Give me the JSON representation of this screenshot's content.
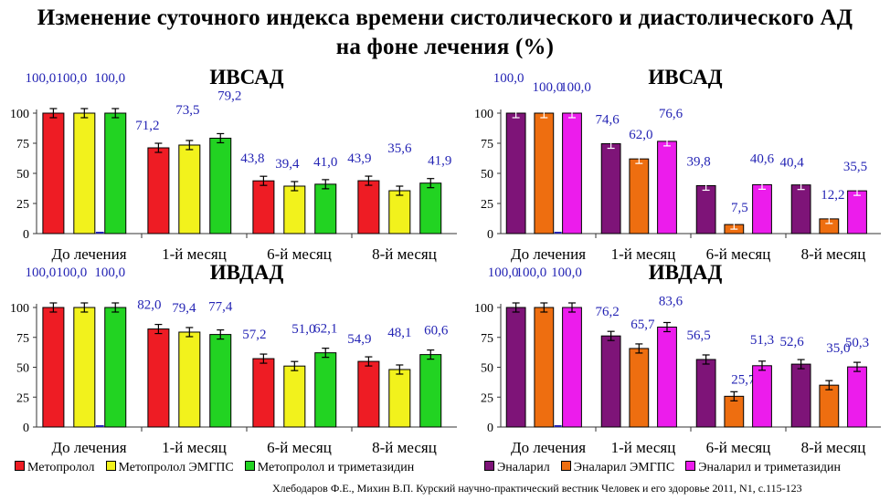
{
  "title_line1": "Изменение суточного индекса времени систолического и диастолического АД",
  "title_line2": "на фоне лечения (%)",
  "source": "Хлебодаров Ф.Е., Михин В.П. Курский научно-практический вестник Человек и его здоровье 2011, N1, с.115-123",
  "legend_left": [
    {
      "label": "Метопролол",
      "color": "#ee1c24"
    },
    {
      "label": "Метопролол ЭМГПС",
      "color": "#f2f21c"
    },
    {
      "label": "Метопролол и триметазидин",
      "color": "#22d322"
    }
  ],
  "legend_right": [
    {
      "label": "Эналарил",
      "color": "#7e1478"
    },
    {
      "label": "Эналарил ЭМГПС",
      "color": "#ee6e10"
    },
    {
      "label": "Эналарил и триметазидин",
      "color": "#ec1cec"
    }
  ],
  "chart_data": [
    {
      "type": "bar",
      "title": "ИВСАД",
      "categories": [
        "До лечения",
        "1-й месяц",
        "6-й месяц",
        "8-й месяц"
      ],
      "ylim": [
        0,
        100
      ],
      "yticks": [
        0,
        25,
        50,
        75,
        100
      ],
      "series": [
        {
          "name": "Метопролол",
          "color": "#ee1c24",
          "values": [
            100,
            71.2,
            43.8,
            43.9
          ],
          "labels": [
            "100,0",
            "71,2",
            "43,8",
            "43,9"
          ]
        },
        {
          "name": "Метопролол ЭМГПС",
          "color": "#f2f21c",
          "values": [
            100,
            73.5,
            39.4,
            35.6
          ],
          "labels": [
            "100,0",
            "73,5",
            "39,4",
            "35,6"
          ]
        },
        {
          "name": "Метопролол и триметазидин",
          "color": "#22d322",
          "values": [
            100,
            79.2,
            41.0,
            41.9
          ],
          "labels": [
            "100,0",
            "79,2",
            "41,0",
            "41,9"
          ]
        }
      ]
    },
    {
      "type": "bar",
      "title": "ИВСАД",
      "categories": [
        "До лечения",
        "1-й месяц",
        "6-й месяц",
        "8-й месяц"
      ],
      "ylim": [
        0,
        100
      ],
      "yticks": [
        0,
        25,
        50,
        75,
        100
      ],
      "series": [
        {
          "name": "Эналарил",
          "color": "#7e1478",
          "values": [
            100,
            74.6,
            39.8,
            40.4
          ],
          "labels": [
            "100,0",
            "74,6",
            "39,8",
            "40,4"
          ]
        },
        {
          "name": "Эналарил ЭМГПС",
          "color": "#ee6e10",
          "values": [
            100,
            62.0,
            7.5,
            12.2
          ],
          "labels": [
            "100,0",
            "62,0",
            "7,5",
            "12,2"
          ]
        },
        {
          "name": "Эналарил и триметазидин",
          "color": "#ec1cec",
          "values": [
            100,
            76.6,
            40.6,
            35.5
          ],
          "labels": [
            "100,0",
            "76,6",
            "40,6",
            "35,5"
          ]
        }
      ]
    },
    {
      "type": "bar",
      "title": "ИВДАД",
      "categories": [
        "До лечения",
        "1-й месяц",
        "6-й месяц",
        "8-й месяц"
      ],
      "ylim": [
        0,
        100
      ],
      "yticks": [
        0,
        25,
        50,
        75,
        100
      ],
      "series": [
        {
          "name": "Метопролол",
          "color": "#ee1c24",
          "values": [
            100,
            82.0,
            57.2,
            54.9
          ],
          "labels": [
            "100,0",
            "82,0",
            "57,2",
            "54,9"
          ]
        },
        {
          "name": "Метопролол ЭМГПС",
          "color": "#f2f21c",
          "values": [
            100,
            79.4,
            51.0,
            48.1
          ],
          "labels": [
            "100,0",
            "79,4",
            "51,0",
            "48,1"
          ]
        },
        {
          "name": "Метопролол и триметазидин",
          "color": "#22d322",
          "values": [
            100,
            77.4,
            62.1,
            60.6
          ],
          "labels": [
            "100,0",
            "77,4",
            "62,1",
            "60,6"
          ]
        }
      ]
    },
    {
      "type": "bar",
      "title": "ИВДАД",
      "categories": [
        "До лечения",
        "1-й месяц",
        "6-й месяц",
        "8-й месяц"
      ],
      "ylim": [
        0,
        100
      ],
      "yticks": [
        0,
        25,
        50,
        75,
        100
      ],
      "series": [
        {
          "name": "Эналарил",
          "color": "#7e1478",
          "values": [
            100,
            76.2,
            56.5,
            52.6
          ],
          "labels": [
            "100,0",
            "76,2",
            "56,5",
            "52,6"
          ]
        },
        {
          "name": "Эналарил ЭМГПС",
          "color": "#ee6e10",
          "values": [
            100,
            65.7,
            25.7,
            35.0
          ],
          "labels": [
            "100,0",
            "65,7",
            "25,7",
            "35,0"
          ]
        },
        {
          "name": "Эналарил и триметазидин",
          "color": "#ec1cec",
          "values": [
            100,
            83.6,
            51.3,
            50.3
          ],
          "labels": [
            "100,0",
            "83,6",
            "51,3",
            "50,3"
          ]
        }
      ]
    }
  ]
}
